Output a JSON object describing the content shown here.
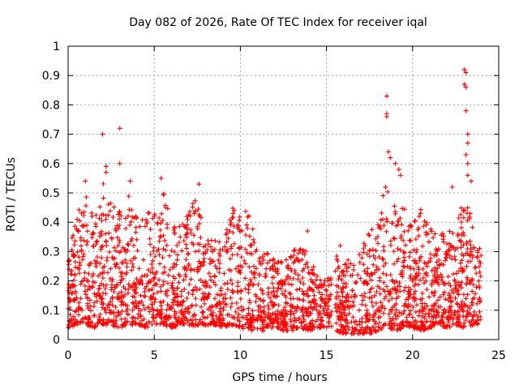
{
  "chart_data": {
    "type": "scatter",
    "title": "Day 082 of 2026, Rate Of TEC Index for receiver iqal",
    "xlabel": "GPS time / hours",
    "ylabel": "ROTI / TECUs",
    "xlim": [
      0,
      25
    ],
    "ylim": [
      0,
      1
    ],
    "xticks": [
      0,
      5,
      10,
      15,
      20,
      25
    ],
    "xtick_labels": [
      "0",
      "5",
      "10",
      "15",
      "20",
      "25"
    ],
    "yticks": [
      0,
      0.1,
      0.2,
      0.3,
      0.4,
      0.5,
      0.6,
      0.7,
      0.8,
      0.9,
      1
    ],
    "ytick_labels": [
      "0",
      "0.1",
      "0.2",
      "0.3",
      "0.4",
      "0.5",
      "0.6",
      "0.7",
      "0.8",
      "0.9",
      "1"
    ],
    "grid": true,
    "marker": "+",
    "marker_color": "#ff0000",
    "x_range_observed": [
      0,
      24
    ],
    "data_gap_hours": [
      15.3,
      15.5
    ],
    "envelope": {
      "x": [
        0,
        0.5,
        1,
        1.5,
        2,
        2.5,
        3,
        3.5,
        4,
        4.5,
        5,
        5.5,
        6,
        6.5,
        7,
        7.5,
        8,
        8.5,
        9,
        9.5,
        10,
        10.5,
        11,
        11.5,
        12,
        12.5,
        13,
        13.5,
        14,
        14.5,
        15,
        15.5,
        16,
        16.5,
        17,
        17.5,
        18,
        18.5,
        19,
        19.5,
        20,
        20.5,
        21,
        21.5,
        22,
        22.5,
        23,
        23.5,
        24
      ],
      "upper": [
        0.28,
        0.45,
        0.5,
        0.42,
        0.55,
        0.48,
        0.45,
        0.5,
        0.42,
        0.43,
        0.44,
        0.52,
        0.4,
        0.4,
        0.45,
        0.5,
        0.35,
        0.35,
        0.32,
        0.46,
        0.44,
        0.44,
        0.3,
        0.3,
        0.28,
        0.26,
        0.3,
        0.33,
        0.3,
        0.22,
        0.2,
        0.3,
        0.25,
        0.3,
        0.3,
        0.38,
        0.42,
        0.55,
        0.45,
        0.45,
        0.4,
        0.45,
        0.38,
        0.35,
        0.38,
        0.4,
        0.48,
        0.42,
        0.3
      ],
      "lower": [
        0.04,
        0.05,
        0.05,
        0.04,
        0.05,
        0.05,
        0.04,
        0.05,
        0.05,
        0.04,
        0.05,
        0.05,
        0.04,
        0.05,
        0.05,
        0.04,
        0.05,
        0.05,
        0.04,
        0.05,
        0.04,
        0.03,
        0.03,
        0.03,
        0.04,
        0.03,
        0.03,
        0.04,
        0.03,
        0.04,
        0.04,
        0.03,
        0.02,
        0.02,
        0.02,
        0.02,
        0.03,
        0.04,
        0.03,
        0.04,
        0.04,
        0.03,
        0.04,
        0.05,
        0.04,
        0.05,
        0.04,
        0.05,
        0.05
      ]
    },
    "outliers": [
      {
        "x": 2.0,
        "y": 0.7
      },
      {
        "x": 3.0,
        "y": 0.72
      },
      {
        "x": 3.0,
        "y": 0.6
      },
      {
        "x": 2.2,
        "y": 0.59
      },
      {
        "x": 2.2,
        "y": 0.57
      },
      {
        "x": 3.6,
        "y": 0.54
      },
      {
        "x": 1.0,
        "y": 0.54
      },
      {
        "x": 5.4,
        "y": 0.55
      },
      {
        "x": 7.6,
        "y": 0.53
      },
      {
        "x": 18.5,
        "y": 0.83
      },
      {
        "x": 18.5,
        "y": 0.77
      },
      {
        "x": 18.5,
        "y": 0.76
      },
      {
        "x": 18.6,
        "y": 0.64
      },
      {
        "x": 18.7,
        "y": 0.62
      },
      {
        "x": 19.0,
        "y": 0.6
      },
      {
        "x": 19.2,
        "y": 0.58
      },
      {
        "x": 19.3,
        "y": 0.56
      },
      {
        "x": 23.0,
        "y": 0.92
      },
      {
        "x": 23.1,
        "y": 0.91
      },
      {
        "x": 23.0,
        "y": 0.87
      },
      {
        "x": 23.1,
        "y": 0.86
      },
      {
        "x": 23.1,
        "y": 0.78
      },
      {
        "x": 23.2,
        "y": 0.7
      },
      {
        "x": 23.2,
        "y": 0.67
      },
      {
        "x": 23.1,
        "y": 0.63
      },
      {
        "x": 23.2,
        "y": 0.6
      },
      {
        "x": 23.2,
        "y": 0.56
      },
      {
        "x": 22.3,
        "y": 0.52
      },
      {
        "x": 23.4,
        "y": 0.54
      },
      {
        "x": 13.9,
        "y": 0.37
      },
      {
        "x": 15.8,
        "y": 0.32
      }
    ]
  }
}
